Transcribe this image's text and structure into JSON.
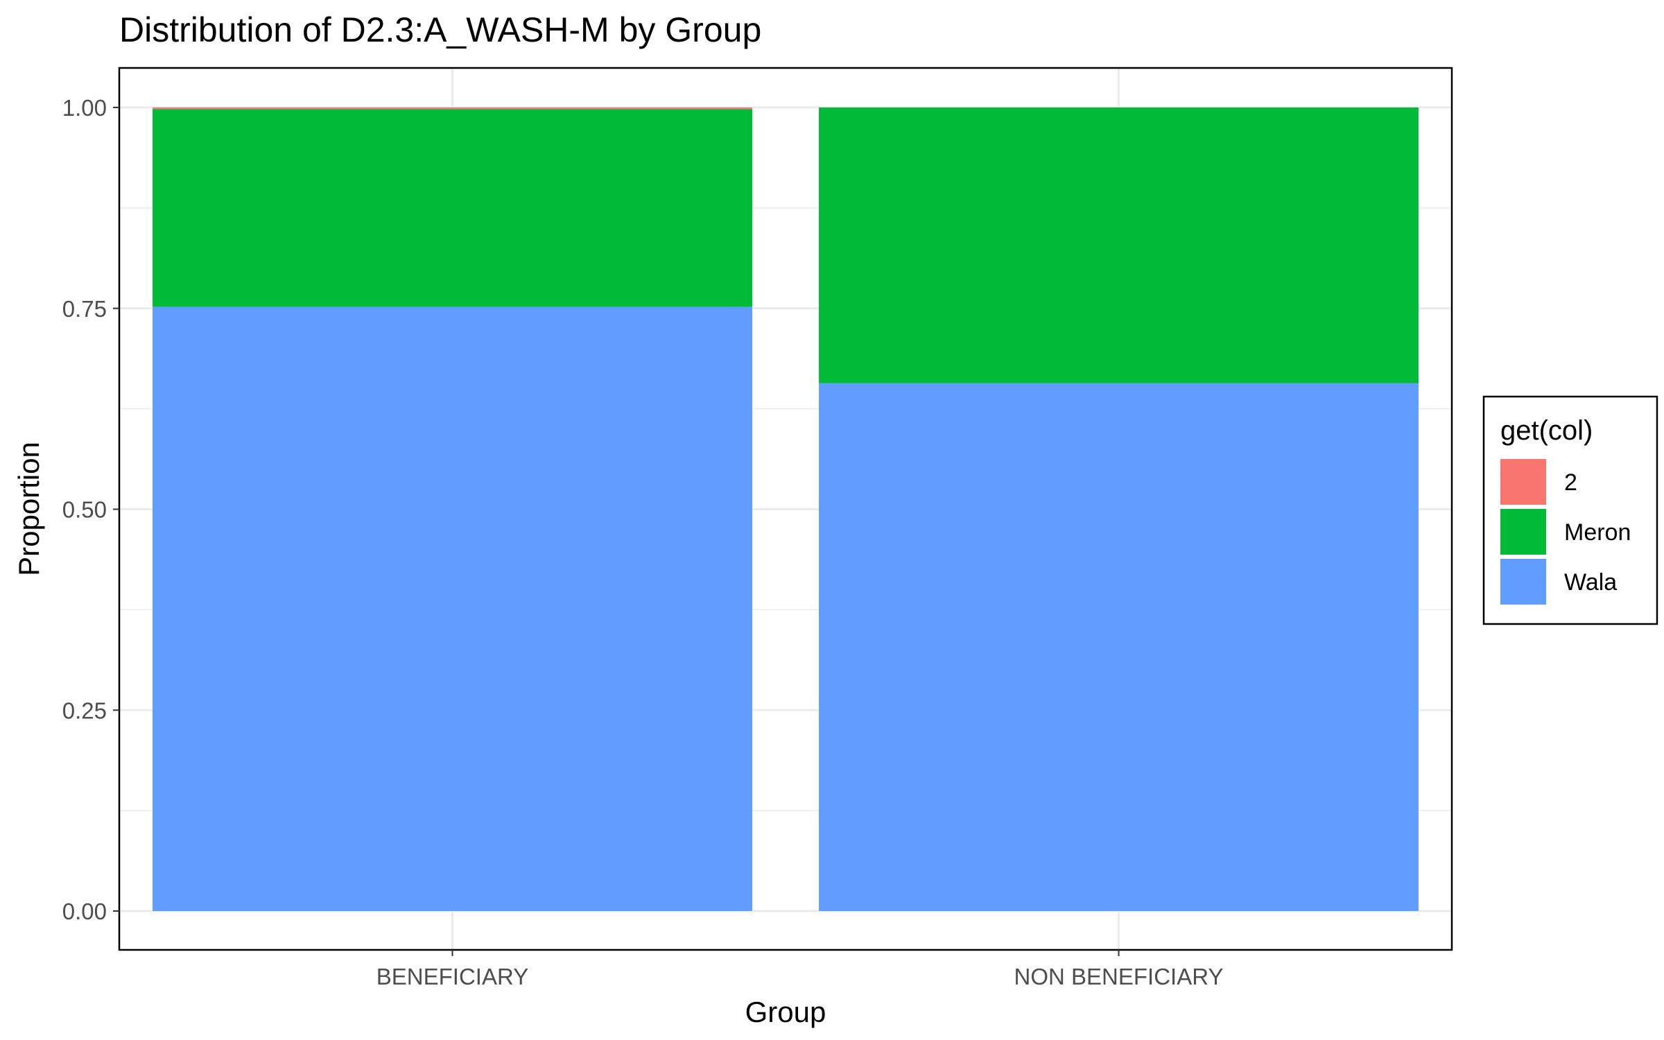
{
  "chart_data": {
    "type": "bar",
    "stacked": true,
    "title": "Distribution of D2.3:A_WASH-M by Group",
    "xlabel": "Group",
    "ylabel": "Proportion",
    "categories": [
      "BENEFICIARY",
      "NON BENEFICIARY"
    ],
    "ylim": [
      0,
      1
    ],
    "yticks": [
      "0.00",
      "0.25",
      "0.50",
      "0.75",
      "1.00"
    ],
    "grid": true,
    "legend": {
      "title": "get(col)",
      "position": "right",
      "entries": [
        "2",
        "Meron",
        "Wala"
      ]
    },
    "series": [
      {
        "name": "Wala",
        "color": "#619CFF",
        "values": [
          0.752,
          0.657
        ]
      },
      {
        "name": "Meron",
        "color": "#00BA38",
        "values": [
          0.246,
          0.343
        ]
      },
      {
        "name": "2",
        "color": "#F8766D",
        "values": [
          0.002,
          0.0
        ]
      }
    ]
  }
}
